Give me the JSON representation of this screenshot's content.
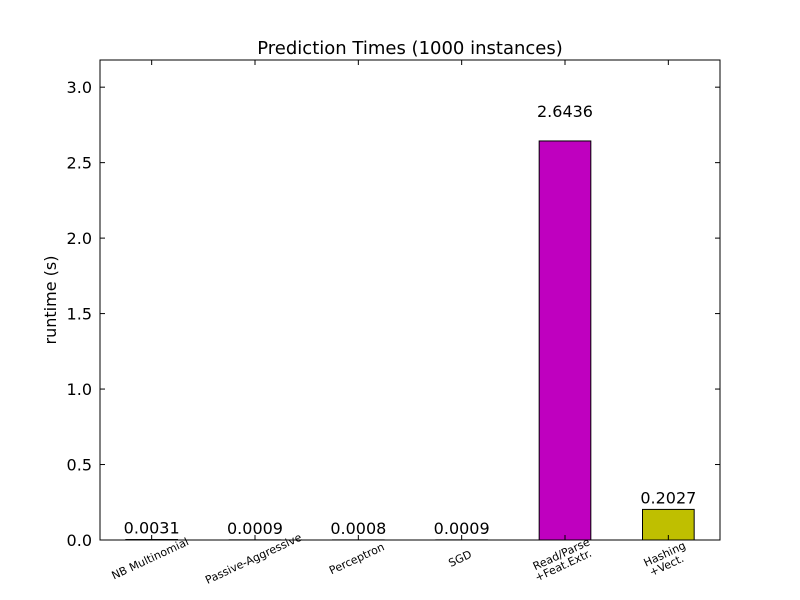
{
  "chart_data": {
    "type": "bar",
    "title": "Prediction Times (1000 instances)",
    "xlabel": "",
    "ylabel": "runtime (s)",
    "ylim": [
      0,
      3.18
    ],
    "yticks": [
      "0.0",
      "0.5",
      "1.0",
      "1.5",
      "2.0",
      "2.5",
      "3.0"
    ],
    "ytick_values": [
      0,
      0.5,
      1.0,
      1.5,
      2.0,
      2.5,
      3.0
    ],
    "categories": [
      [
        "NB Multinomial"
      ],
      [
        "Passive-Aggressive"
      ],
      [
        "Perceptron"
      ],
      [
        "SGD"
      ],
      [
        "Read/Parse",
        "+Feat.Extr."
      ],
      [
        "Hashing",
        "+Vect."
      ]
    ],
    "values": [
      0.0031,
      0.0009,
      0.0008,
      0.0009,
      2.6436,
      0.2027
    ],
    "value_labels": [
      "0.0031",
      "0.0009",
      "0.0008",
      "0.0009",
      "2.6436",
      "0.2027"
    ],
    "colors": [
      "#0000ff",
      "#008000",
      "#ff0000",
      "#00bfbf",
      "#bf00bf",
      "#bfbf00"
    ],
    "grid": false,
    "legend": "none"
  }
}
